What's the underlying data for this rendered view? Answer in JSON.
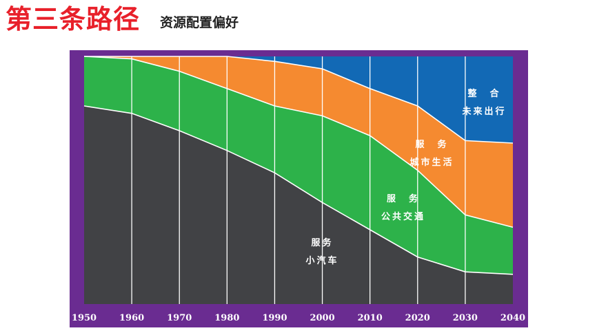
{
  "header": {
    "title": "第三条路径",
    "subtitle": "资源配置偏好"
  },
  "colors": {
    "frame": "#6a2c91",
    "car": "#414245",
    "transit": "#2db24a",
    "city": "#f58a30",
    "mobility": "#1269b5",
    "title": "#e8202a"
  },
  "chart_data": {
    "type": "area",
    "stacked": true,
    "normalized": true,
    "x": [
      1950,
      1960,
      1970,
      1980,
      1990,
      2000,
      2010,
      2020,
      2030,
      2040
    ],
    "ylim": [
      0,
      100
    ],
    "grid": "vertical",
    "series": [
      {
        "name": "服务小汽车",
        "label_lines": [
          "服务",
          "小汽车"
        ],
        "color_key": "car",
        "values": [
          80.0,
          77.0,
          70.0,
          62.0,
          53.0,
          41.0,
          30.0,
          19.0,
          13.0,
          12.0
        ]
      },
      {
        "name": "服务公共交通",
        "label_lines": [
          "服　务",
          "公共交通"
        ],
        "color_key": "transit",
        "values": [
          20.0,
          22.0,
          24.0,
          25.0,
          27.0,
          35.0,
          38.0,
          35.0,
          23.0,
          19.0
        ]
      },
      {
        "name": "服务城市生活",
        "label_lines": [
          "服　务",
          "城市生活"
        ],
        "color_key": "city",
        "values": [
          0.0,
          1.0,
          6.0,
          13.0,
          18.0,
          19.0,
          19.0,
          26.0,
          30.0,
          34.0
        ]
      },
      {
        "name": "整合未来出行",
        "label_lines": [
          "整　合",
          "未来出行"
        ],
        "color_key": "mobility",
        "values": [
          0.0,
          0.0,
          0.0,
          0.0,
          2.0,
          5.0,
          13.0,
          20.0,
          34.0,
          35.0
        ]
      }
    ]
  }
}
